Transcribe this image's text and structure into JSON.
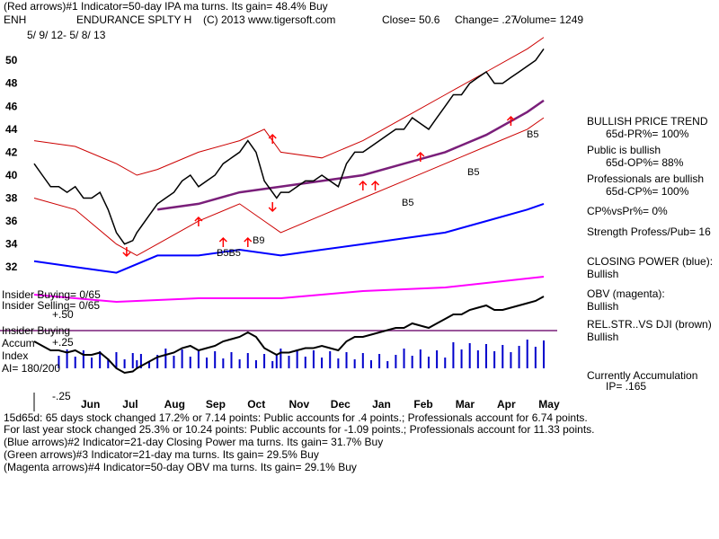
{
  "header": {
    "line1": "(Red arrows)#1 Indicator=50-day IPA ma turns. Its gain= 48.4% Buy",
    "ticker": "ENH",
    "company": "ENDURANCE SPLTY H",
    "copyright": "(C) 2013 www.tigersoft.com",
    "close": "Close=  50.6",
    "change": "Change= .27",
    "volume": "Volume= 1249",
    "daterange": "5/ 9/ 12- 5/ 8/ 13"
  },
  "labels": {
    "insider_buying_count": "Insider Buying= 0/65",
    "insider_selling_count": "Insider Selling= 0/65",
    "plus50": "+.50",
    "insider_buying": "Insider Buying",
    "accum": "Accum",
    "plus25": "+.25",
    "index": "Index",
    "ai": "AI= 180/200",
    "minus25": "-.25",
    "b5": "B5",
    "b9": "B9",
    "b5b5": "B5B5"
  },
  "right_panel": {
    "trend_title": "BULLISH PRICE TREND",
    "pr": "65d-PR%= 100%",
    "public": "Public is bullish",
    "op": "65d-OP%= 88%",
    "pros": "Professionals are bullish",
    "cp": "65d-CP%= 100%",
    "cpvspr": "CP%vsPr%=  0%",
    "strength": "Strength Profess/Pub= 16",
    "closing_power": "CLOSING POWER (blue):",
    "cp_state": "Bullish",
    "obv": "OBV (magenta):",
    "obv_state": "Bullish",
    "relstr": "REL.STR..VS DJI (brown)",
    "relstr_state": "Bullish",
    "accum_title": "Currently Accumulation",
    "ip": "IP=  .165"
  },
  "footer": {
    "line1": "15d65d:  65 days stock changed  17.2% or  7.14 points:  Public accounts for  .4 points.;  Professionals account for  6.74 points.",
    "line2": "For last year stock changed  25.3% or  10.24 points:  Public accounts for -1.09 points.;  Professionals account for  11.33 points.",
    "line3": "(Blue arrows)#2 Indicator=21-day Closing Power ma turns. Its gain= 31.7% Buy",
    "line4": "(Green arrows)#3 Indicator=21-day ma turns. Its gain= 29.5% Buy",
    "line5": "(Magenta arrows)#4 Indicator=50-day OBV ma turns. Its gain= 29.1% Buy"
  },
  "colors": {
    "price": "#000000",
    "band": "#cc0000",
    "ma_slow": "#7a1f7a",
    "closing_power": "#0000ff",
    "obv": "#ff00ff",
    "accum": "#0000cc",
    "arrow": "#ff0000"
  },
  "chart_data": {
    "type": "line",
    "title": "ENDURANCE SPLTY H (ENH) 5/9/12 - 5/8/13",
    "ylim": [
      31,
      51.5
    ],
    "yticks": [
      32,
      34,
      36,
      38,
      40,
      42,
      44,
      46,
      48,
      50
    ],
    "months": [
      "Jun",
      "Jul",
      "Aug",
      "Sep",
      "Oct",
      "Nov",
      "Dec",
      "Jan",
      "Feb",
      "Mar",
      "Apr",
      "May"
    ],
    "series": [
      {
        "name": "Price",
        "x": [
          0,
          4,
          8,
          12,
          16,
          20,
          24,
          28,
          32,
          36,
          40,
          44,
          48,
          50,
          52,
          56,
          60,
          64,
          68,
          72,
          76,
          80,
          84,
          88,
          92,
          96,
          100,
          104,
          108,
          112,
          116,
          118,
          120,
          124,
          128,
          132,
          136,
          140,
          144,
          148,
          152,
          156,
          160,
          164,
          168,
          172,
          176,
          180,
          184,
          188,
          192,
          196,
          200,
          204,
          208,
          212,
          216,
          220,
          224,
          228,
          232,
          236,
          240,
          244,
          248
        ],
        "values": [
          41,
          40,
          39,
          39,
          38.5,
          39,
          38,
          38,
          38.5,
          37,
          35,
          34,
          34.3,
          35,
          35.5,
          36.5,
          37.5,
          38,
          38.5,
          39.5,
          40,
          39,
          39.5,
          40,
          41,
          41.5,
          42,
          43,
          42,
          39.5,
          38.5,
          38,
          38.5,
          38.5,
          39,
          39.5,
          39.5,
          40,
          39.5,
          39,
          41,
          42,
          42,
          42.5,
          43,
          43.5,
          44,
          44,
          45,
          44.5,
          44,
          45,
          46,
          47,
          47,
          48,
          48.5,
          49,
          48,
          48,
          48.5,
          49,
          49.5,
          50,
          51
        ]
      },
      {
        "name": "Upper band",
        "x": [
          0,
          20,
          40,
          50,
          60,
          80,
          100,
          112,
          120,
          140,
          160,
          180,
          200,
          220,
          240,
          248
        ],
        "values": [
          43,
          42.5,
          41,
          40,
          40.5,
          42,
          43,
          44,
          42,
          41.5,
          43,
          45,
          47,
          49,
          51,
          52
        ]
      },
      {
        "name": "Lower band",
        "x": [
          0,
          20,
          40,
          50,
          60,
          80,
          100,
          112,
          120,
          140,
          160,
          180,
          200,
          220,
          240,
          248
        ],
        "values": [
          38,
          37,
          34,
          33,
          34,
          36,
          37.5,
          36,
          35,
          36.5,
          38,
          39.5,
          41,
          42.5,
          44,
          45
        ]
      },
      {
        "name": "50-day MA",
        "x": [
          60,
          80,
          100,
          120,
          140,
          160,
          180,
          200,
          220,
          240,
          248
        ],
        "values": [
          37,
          37.5,
          38.5,
          39,
          39.5,
          40,
          41,
          42,
          43.5,
          45.5,
          46.5
        ]
      },
      {
        "name": "Closing Power",
        "x": [
          0,
          20,
          40,
          60,
          80,
          100,
          120,
          140,
          160,
          180,
          200,
          220,
          240,
          248
        ],
        "values": [
          32.5,
          32,
          31.5,
          33,
          33,
          33.5,
          33,
          33.5,
          34,
          34.5,
          35,
          36,
          37,
          37.5
        ]
      },
      {
        "name": "OBV",
        "x": [
          0,
          40,
          80,
          120,
          160,
          200,
          248
        ],
        "values": [
          -0.2,
          -0.4,
          -0.3,
          -0.3,
          -0.1,
          0.0,
          0.3
        ]
      }
    ]
  }
}
